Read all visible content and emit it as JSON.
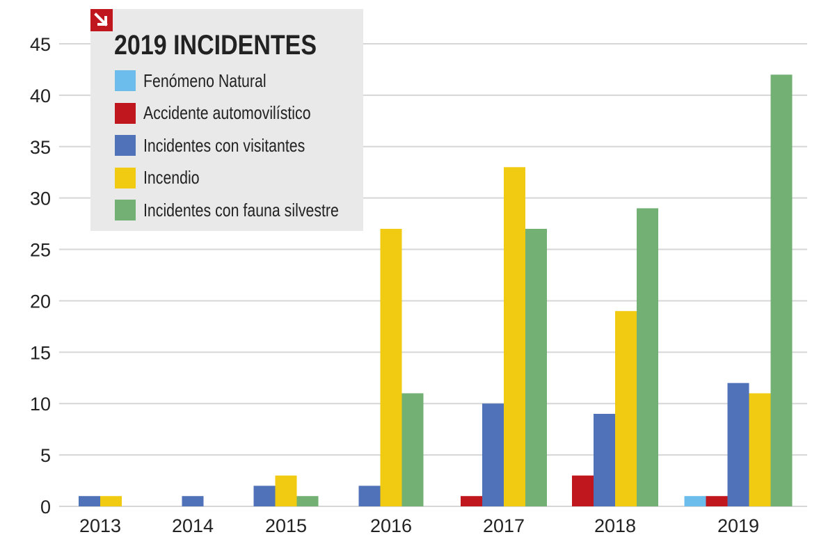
{
  "chart_data": {
    "type": "bar",
    "title": "2019 INCIDENTES",
    "xlabel": "",
    "ylabel": "",
    "categories": [
      "2013",
      "2014",
      "2015",
      "2016",
      "2017",
      "2018",
      "2019"
    ],
    "ylim": [
      0,
      45
    ],
    "yticks": [
      0,
      5,
      10,
      15,
      20,
      25,
      30,
      35,
      40,
      45
    ],
    "grid": true,
    "legend_position": "top-left",
    "series": [
      {
        "name": "Fenómeno Natural",
        "color": "#6cbcec",
        "values": [
          null,
          null,
          null,
          null,
          null,
          null,
          1
        ]
      },
      {
        "name": "Accidente automovilístico",
        "color": "#c0161e",
        "values": [
          null,
          null,
          null,
          null,
          1,
          3,
          1
        ]
      },
      {
        "name": "Incidentes con visitantes",
        "color": "#4f72b8",
        "values": [
          1,
          1,
          2,
          2,
          10,
          9,
          12
        ]
      },
      {
        "name": "Incendio",
        "color": "#f1cb12",
        "values": [
          1,
          null,
          3,
          27,
          33,
          19,
          11
        ]
      },
      {
        "name": "Incidentes con fauna silvestre",
        "color": "#72b073",
        "values": [
          null,
          null,
          1,
          11,
          27,
          29,
          42
        ]
      }
    ]
  },
  "icons": {
    "corner": "arrow-down-right-icon",
    "corner_color": "#c0161e"
  }
}
